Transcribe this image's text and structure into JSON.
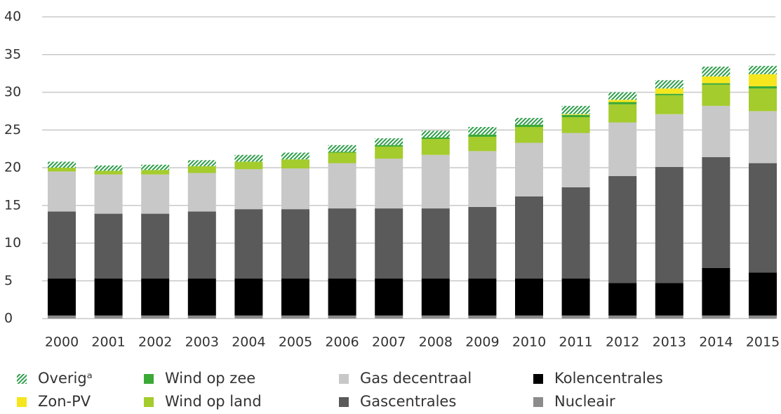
{
  "chart_data": {
    "type": "stacked-bar",
    "categories": [
      "2000",
      "2001",
      "2002",
      "2003",
      "2004",
      "2005",
      "2006",
      "2007",
      "2008",
      "2009",
      "2010",
      "2011",
      "2012",
      "2013",
      "2014",
      "2015"
    ],
    "series": [
      {
        "name": "Nucleair",
        "color": "#8c8c8c",
        "values": [
          0.4,
          0.4,
          0.4,
          0.4,
          0.4,
          0.4,
          0.4,
          0.4,
          0.4,
          0.4,
          0.4,
          0.4,
          0.4,
          0.4,
          0.4,
          0.4
        ]
      },
      {
        "name": "Kolencentrales",
        "color": "#000000",
        "values": [
          4.9,
          4.9,
          4.9,
          4.9,
          4.9,
          4.9,
          4.9,
          4.9,
          4.9,
          4.9,
          4.9,
          4.9,
          4.3,
          4.3,
          6.3,
          5.7
        ]
      },
      {
        "name": "Gascentrales",
        "color": "#5a5a5a",
        "values": [
          8.9,
          8.6,
          8.6,
          8.9,
          9.2,
          9.2,
          9.3,
          9.3,
          9.3,
          9.5,
          10.9,
          12.1,
          14.2,
          15.4,
          14.7,
          14.5
        ]
      },
      {
        "name": "Gas decentraal",
        "color": "#c8c8c8",
        "values": [
          5.3,
          5.2,
          5.2,
          5.1,
          5.3,
          5.4,
          6.0,
          6.6,
          7.1,
          7.4,
          7.1,
          7.2,
          7.1,
          7.0,
          6.8,
          6.9
        ]
      },
      {
        "name": "Wind op land",
        "color": "#a4cc2c",
        "values": [
          0.5,
          0.5,
          0.6,
          0.9,
          1.0,
          1.2,
          1.4,
          1.6,
          2.1,
          1.9,
          2.1,
          2.1,
          2.4,
          2.5,
          2.8,
          3.0
        ]
      },
      {
        "name": "Wind op zee",
        "color": "#3aa935",
        "values": [
          0,
          0,
          0,
          0,
          0,
          0,
          0.1,
          0.2,
          0.2,
          0.3,
          0.3,
          0.3,
          0.3,
          0.2,
          0.2,
          0.3
        ]
      },
      {
        "name": "Zon-PV",
        "color": "#f5e61e",
        "values": [
          0,
          0,
          0,
          0,
          0,
          0,
          0,
          0,
          0,
          0,
          0,
          0.1,
          0.3,
          0.7,
          0.9,
          1.6
        ]
      },
      {
        "name": "Overigᵃ",
        "color": "#2e9e4a",
        "hatch": true,
        "values": [
          0.8,
          0.7,
          0.7,
          0.8,
          0.9,
          0.9,
          0.9,
          0.9,
          0.9,
          1.0,
          0.9,
          1.1,
          1.0,
          1.1,
          1.3,
          1.1
        ]
      }
    ],
    "legend_order": [
      7,
      5,
      3,
      1,
      6,
      4,
      2,
      0
    ],
    "ylim": [
      0,
      40
    ],
    "yticks": [
      0,
      5,
      10,
      15,
      20,
      25,
      30,
      35,
      40
    ],
    "grid": true
  }
}
